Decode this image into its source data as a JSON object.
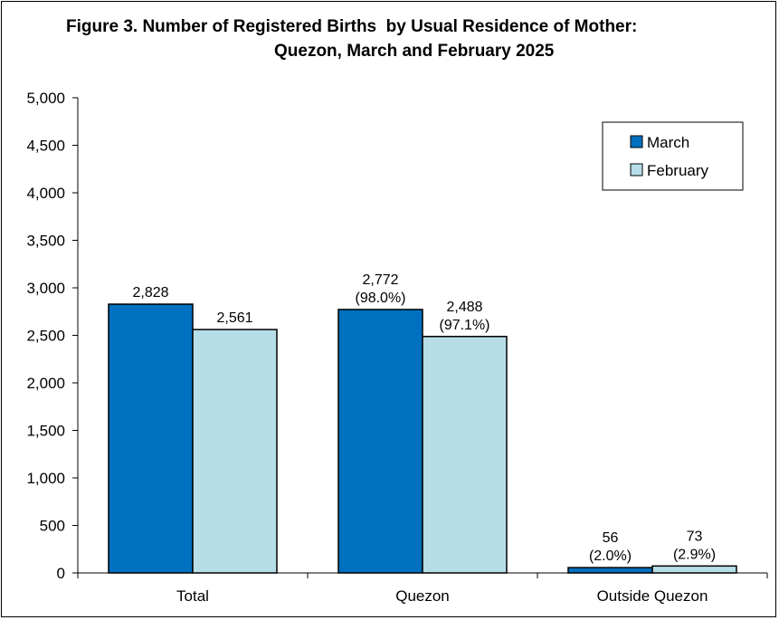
{
  "title": {
    "line1": "Figure 3. Number of Registered Births  by Usual Residence of Mother:",
    "line2": "Quezon, March and February 2025"
  },
  "colors": {
    "march": "#0070C0",
    "february": "#B7DEE8",
    "bar_outline": "#000000"
  },
  "chart_data": {
    "type": "bar",
    "categories": [
      "Total",
      "Quezon",
      "Outside Quezon"
    ],
    "series": [
      {
        "name": "March",
        "values": [
          2828,
          2772,
          56
        ],
        "labels": [
          [
            "2,828"
          ],
          [
            "2,772",
            "(98.0%)"
          ],
          [
            "56",
            "(2.0%)"
          ]
        ]
      },
      {
        "name": "February",
        "values": [
          2561,
          2488,
          73
        ],
        "labels": [
          [
            "2,561"
          ],
          [
            "2,488",
            "(97.1%)"
          ],
          [
            "73",
            "(2.9%)"
          ]
        ]
      }
    ],
    "ylim": [
      0,
      5000
    ],
    "yticks": [
      0,
      500,
      1000,
      1500,
      2000,
      2500,
      3000,
      3500,
      4000,
      4500,
      5000
    ],
    "ytick_labels": [
      "0",
      "500",
      "1,000",
      "1,500",
      "2,000",
      "2,500",
      "3,000",
      "3,500",
      "4,000",
      "4,500",
      "5,000"
    ],
    "grid": false,
    "legend": "top-right"
  }
}
